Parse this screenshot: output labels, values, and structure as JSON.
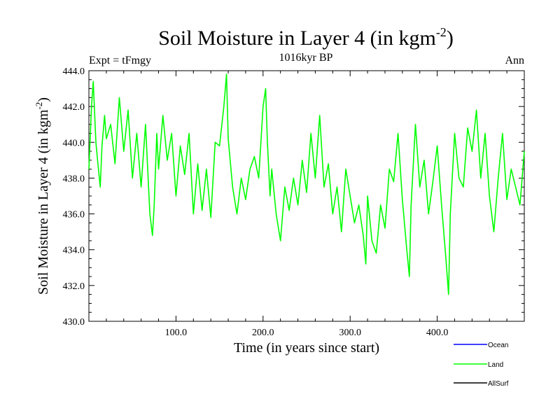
{
  "chart_data": {
    "type": "line",
    "title": "Soil Moisture in Layer 4 (in kgm",
    "title_sup": "-2",
    "title_tail": ")",
    "subtitle_left": "Expt = tFmgy",
    "subtitle_center": "1016kyr BP",
    "subtitle_right": "Ann",
    "xlabel": "Time (in years since start)",
    "ylabel": "Soil Moisture in Layer 4 (in kgm",
    "ylabel_sup": "-2",
    "ylabel_tail": ")",
    "xlim": [
      0,
      500
    ],
    "ylim": [
      430.0,
      444.0
    ],
    "x_ticks": [
      100.0,
      200.0,
      300.0,
      400.0
    ],
    "x_tick_labels": [
      "100.0",
      "200.0",
      "300.0",
      "400.0"
    ],
    "y_ticks": [
      430.0,
      432.0,
      434.0,
      436.0,
      438.0,
      440.0,
      442.0,
      444.0
    ],
    "y_tick_labels": [
      "430.0",
      "432.0",
      "434.0",
      "436.0",
      "438.0",
      "440.0",
      "442.0",
      "444.0"
    ],
    "legend": [
      {
        "name": "Ocean",
        "color": "#0000ff"
      },
      {
        "name": "Land",
        "color": "#00ff00"
      },
      {
        "name": "AllSurf",
        "color": "#000000"
      }
    ],
    "series": [
      {
        "name": "Land",
        "color": "#00ff00",
        "x": [
          0,
          3,
          5,
          8,
          10,
          13,
          15,
          18,
          20,
          25,
          30,
          35,
          40,
          45,
          50,
          55,
          60,
          65,
          70,
          73,
          75,
          78,
          80,
          85,
          90,
          95,
          100,
          105,
          110,
          115,
          120,
          125,
          130,
          135,
          140,
          145,
          150,
          155,
          158,
          160,
          165,
          170,
          175,
          180,
          185,
          190,
          195,
          200,
          203,
          205,
          208,
          210,
          215,
          220,
          225,
          230,
          235,
          240,
          245,
          250,
          255,
          260,
          265,
          270,
          275,
          280,
          285,
          290,
          295,
          300,
          305,
          310,
          315,
          318,
          320,
          325,
          330,
          335,
          340,
          345,
          350,
          355,
          360,
          365,
          368,
          370,
          375,
          380,
          385,
          390,
          395,
          400,
          405,
          410,
          413,
          415,
          420,
          425,
          430,
          435,
          440,
          445,
          450,
          455,
          460,
          465,
          470,
          475,
          480,
          485,
          490,
          495,
          500
        ],
        "values": [
          438.5,
          442.0,
          443.4,
          440.0,
          439.0,
          437.5,
          439.8,
          441.5,
          440.2,
          441.0,
          438.8,
          442.5,
          439.5,
          441.8,
          438.0,
          440.5,
          437.5,
          441.0,
          436.0,
          434.8,
          436.5,
          440.5,
          438.5,
          441.5,
          439.0,
          440.5,
          437.0,
          439.8,
          438.2,
          440.5,
          436.0,
          438.8,
          436.2,
          438.5,
          435.8,
          440.0,
          439.8,
          442.0,
          443.8,
          440.2,
          437.5,
          436.0,
          438.0,
          436.8,
          438.5,
          439.2,
          438.0,
          442.0,
          443.0,
          440.0,
          437.0,
          438.5,
          436.0,
          434.5,
          437.5,
          436.2,
          438.0,
          436.5,
          439.0,
          437.2,
          440.5,
          438.0,
          441.5,
          437.5,
          438.8,
          436.0,
          437.5,
          435.0,
          438.5,
          437.0,
          435.5,
          436.5,
          434.8,
          433.2,
          437.0,
          434.5,
          433.8,
          436.5,
          435.2,
          438.5,
          437.8,
          440.5,
          436.8,
          434.0,
          432.5,
          436.5,
          441.0,
          437.5,
          439.0,
          436.0,
          437.8,
          439.8,
          436.5,
          433.5,
          431.5,
          436.0,
          440.5,
          438.0,
          437.5,
          440.8,
          439.5,
          441.8,
          438.0,
          440.5,
          437.0,
          435.0,
          438.0,
          440.5,
          436.8,
          438.5,
          437.5,
          436.5,
          439.5
        ]
      }
    ]
  }
}
